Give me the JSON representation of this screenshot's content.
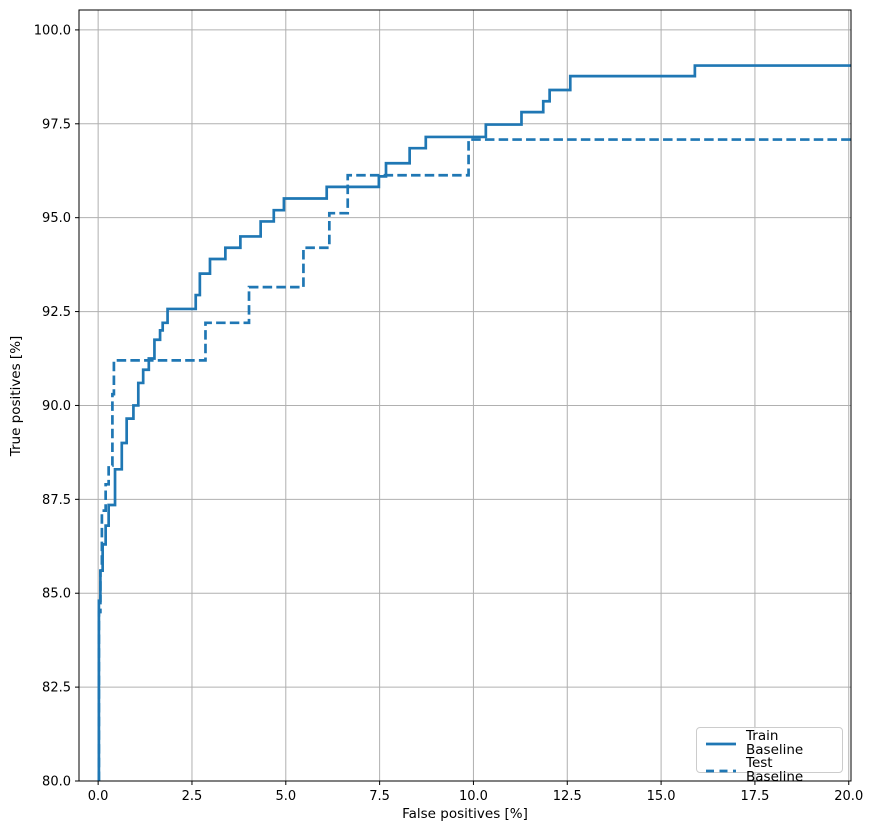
{
  "chart_data": {
    "type": "line",
    "title": "",
    "xlabel": "False positives [%]",
    "ylabel": "True positives [%]",
    "xlim": [
      -0.51,
      20.06
    ],
    "ylim": [
      80,
      100.53
    ],
    "grid": true,
    "legend_position": "lower right",
    "xticks": {
      "values": [
        0,
        2.5,
        5,
        7.5,
        10,
        12.5,
        15,
        17.5,
        20
      ],
      "labels": [
        "0.0",
        "2.5",
        "5.0",
        "7.5",
        "10.0",
        "12.5",
        "15.0",
        "17.5",
        "20.0"
      ]
    },
    "yticks": {
      "values": [
        80,
        82.5,
        85,
        87.5,
        90,
        92.5,
        95,
        97.5,
        100
      ],
      "labels": [
        "80.0",
        "82.5",
        "85.0",
        "87.5",
        "90.0",
        "92.5",
        "95.0",
        "97.5",
        "100.0"
      ]
    },
    "colors": {
      "line": "#1f77b4",
      "grid": "#b0b0b0",
      "spine": "#000000",
      "background": "#ffffff",
      "legend_border": "#cccccc"
    },
    "series": [
      {
        "name": "Train Baseline",
        "style": "solid",
        "color": "#1f77b4",
        "points": [
          [
            0.02,
            80
          ],
          [
            0.02,
            84.8
          ],
          [
            0.06,
            84.8
          ],
          [
            0.06,
            85.6
          ],
          [
            0.12,
            85.6
          ],
          [
            0.12,
            86.3
          ],
          [
            0.2,
            86.3
          ],
          [
            0.2,
            86.8
          ],
          [
            0.28,
            86.8
          ],
          [
            0.28,
            87.35
          ],
          [
            0.45,
            87.35
          ],
          [
            0.45,
            88.3
          ],
          [
            0.63,
            88.3
          ],
          [
            0.63,
            89.0
          ],
          [
            0.76,
            89.0
          ],
          [
            0.76,
            89.65
          ],
          [
            0.94,
            89.65
          ],
          [
            0.94,
            90.0
          ],
          [
            1.07,
            90.0
          ],
          [
            1.07,
            90.6
          ],
          [
            1.2,
            90.6
          ],
          [
            1.2,
            90.95
          ],
          [
            1.35,
            90.95
          ],
          [
            1.35,
            91.25
          ],
          [
            1.5,
            91.25
          ],
          [
            1.5,
            91.75
          ],
          [
            1.65,
            91.75
          ],
          [
            1.65,
            92.0
          ],
          [
            1.72,
            92.0
          ],
          [
            1.72,
            92.2
          ],
          [
            1.85,
            92.2
          ],
          [
            1.85,
            92.57
          ],
          [
            2.6,
            92.57
          ],
          [
            2.6,
            92.94
          ],
          [
            2.71,
            92.94
          ],
          [
            2.71,
            93.51
          ],
          [
            2.98,
            93.51
          ],
          [
            2.98,
            93.9
          ],
          [
            3.39,
            93.9
          ],
          [
            3.39,
            94.2
          ],
          [
            3.79,
            94.2
          ],
          [
            3.79,
            94.5
          ],
          [
            4.33,
            94.5
          ],
          [
            4.33,
            94.9
          ],
          [
            4.68,
            94.9
          ],
          [
            4.68,
            95.2
          ],
          [
            4.95,
            95.2
          ],
          [
            4.95,
            95.51
          ],
          [
            6.09,
            95.51
          ],
          [
            6.09,
            95.82
          ],
          [
            7.48,
            95.82
          ],
          [
            7.48,
            96.1
          ],
          [
            7.67,
            96.1
          ],
          [
            7.67,
            96.45
          ],
          [
            8.3,
            96.45
          ],
          [
            8.3,
            96.85
          ],
          [
            8.73,
            96.85
          ],
          [
            8.73,
            97.15
          ],
          [
            10.33,
            97.15
          ],
          [
            10.33,
            97.48
          ],
          [
            11.28,
            97.48
          ],
          [
            11.28,
            97.81
          ],
          [
            11.86,
            97.81
          ],
          [
            11.86,
            98.1
          ],
          [
            12.03,
            98.1
          ],
          [
            12.03,
            98.4
          ],
          [
            12.58,
            98.4
          ],
          [
            12.58,
            98.77
          ],
          [
            15.9,
            98.77
          ],
          [
            15.9,
            99.05
          ],
          [
            20.06,
            99.05
          ]
        ]
      },
      {
        "name": "Test Baseline",
        "style": "dashed",
        "color": "#1f77b4",
        "points": [
          [
            0.02,
            80
          ],
          [
            0.02,
            84.5
          ],
          [
            0.06,
            84.5
          ],
          [
            0.06,
            85.6
          ],
          [
            0.1,
            85.6
          ],
          [
            0.1,
            87.2
          ],
          [
            0.2,
            87.2
          ],
          [
            0.2,
            87.9
          ],
          [
            0.28,
            87.9
          ],
          [
            0.28,
            88.4
          ],
          [
            0.38,
            88.4
          ],
          [
            0.38,
            90.3
          ],
          [
            0.42,
            90.3
          ],
          [
            0.42,
            91.2
          ],
          [
            2.86,
            91.2
          ],
          [
            2.86,
            92.2
          ],
          [
            4.02,
            92.2
          ],
          [
            4.02,
            93.15
          ],
          [
            5.47,
            93.15
          ],
          [
            5.47,
            94.2
          ],
          [
            6.16,
            94.2
          ],
          [
            6.16,
            95.12
          ],
          [
            6.65,
            95.12
          ],
          [
            6.65,
            96.13
          ],
          [
            9.87,
            96.13
          ],
          [
            9.87,
            97.08
          ],
          [
            20.06,
            97.08
          ]
        ]
      }
    ]
  }
}
